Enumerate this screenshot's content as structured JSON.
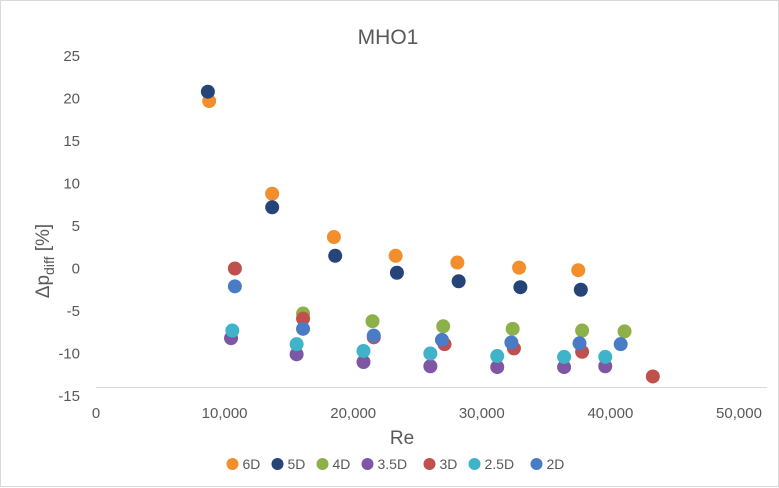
{
  "chart_data": {
    "type": "scatter",
    "title": "MHO1",
    "xlabel": "Re",
    "ylabel_main": "Δp",
    "ylabel_sub": "diff",
    "ylabel_unit": " [%]",
    "xlim": [
      0,
      50000
    ],
    "ylim": [
      -15,
      25
    ],
    "x_ticks": [
      0,
      10000,
      20000,
      30000,
      40000,
      50000
    ],
    "x_tick_labels": [
      "0",
      "10,000",
      "20,000",
      "30,000",
      "40,000",
      "50,000"
    ],
    "y_ticks": [
      -15,
      -10,
      -5,
      0,
      5,
      10,
      15,
      20,
      25
    ],
    "y_tick_labels": [
      "-15",
      "-10",
      "-5",
      "0",
      "5",
      "10",
      "15",
      "20",
      "25"
    ],
    "grid": false,
    "legend_position": "bottom",
    "series": [
      {
        "name": "6D",
        "color": "#F28E2B",
        "points": [
          [
            8800,
            19.7
          ],
          [
            13700,
            8.8
          ],
          [
            18500,
            3.7
          ],
          [
            23300,
            1.5
          ],
          [
            28100,
            0.7
          ],
          [
            32900,
            0.1
          ],
          [
            37500,
            -0.2
          ]
        ]
      },
      {
        "name": "5D",
        "color": "#264478",
        "points": [
          [
            8700,
            20.8
          ],
          [
            13700,
            7.2
          ],
          [
            18600,
            1.5
          ],
          [
            23400,
            -0.5
          ],
          [
            28200,
            -1.5
          ],
          [
            33000,
            -2.2
          ],
          [
            37700,
            -2.5
          ]
        ]
      },
      {
        "name": "4D",
        "color": "#8CB04A",
        "points": [
          [
            16100,
            -5.3
          ],
          [
            21500,
            -6.2
          ],
          [
            27000,
            -6.8
          ],
          [
            32400,
            -7.1
          ],
          [
            37800,
            -7.3
          ],
          [
            41100,
            -7.4
          ]
        ]
      },
      {
        "name": "3.5D",
        "color": "#7E57A4",
        "points": [
          [
            10500,
            -8.2
          ],
          [
            15600,
            -10.1
          ],
          [
            20800,
            -11.0
          ],
          [
            26000,
            -11.5
          ],
          [
            31200,
            -11.6
          ],
          [
            36400,
            -11.6
          ],
          [
            39600,
            -11.5
          ]
        ]
      },
      {
        "name": "3D",
        "color": "#C0504D",
        "points": [
          [
            10800,
            0.0
          ],
          [
            16100,
            -5.9
          ],
          [
            21600,
            -8.1
          ],
          [
            27100,
            -8.9
          ],
          [
            32500,
            -9.4
          ],
          [
            37800,
            -9.8
          ],
          [
            43300,
            -12.7
          ]
        ]
      },
      {
        "name": "2.5D",
        "color": "#3EB3C9",
        "points": [
          [
            10600,
            -7.3
          ],
          [
            15600,
            -8.9
          ],
          [
            20800,
            -9.7
          ],
          [
            26000,
            -10.0
          ],
          [
            31200,
            -10.3
          ],
          [
            36400,
            -10.4
          ],
          [
            39600,
            -10.4
          ]
        ]
      },
      {
        "name": "2D",
        "color": "#4A7CC5",
        "points": [
          [
            10800,
            -2.1
          ],
          [
            16100,
            -7.1
          ],
          [
            21600,
            -7.9
          ],
          [
            26900,
            -8.4
          ],
          [
            32300,
            -8.7
          ],
          [
            37600,
            -8.8
          ],
          [
            40800,
            -8.9
          ]
        ]
      }
    ]
  }
}
